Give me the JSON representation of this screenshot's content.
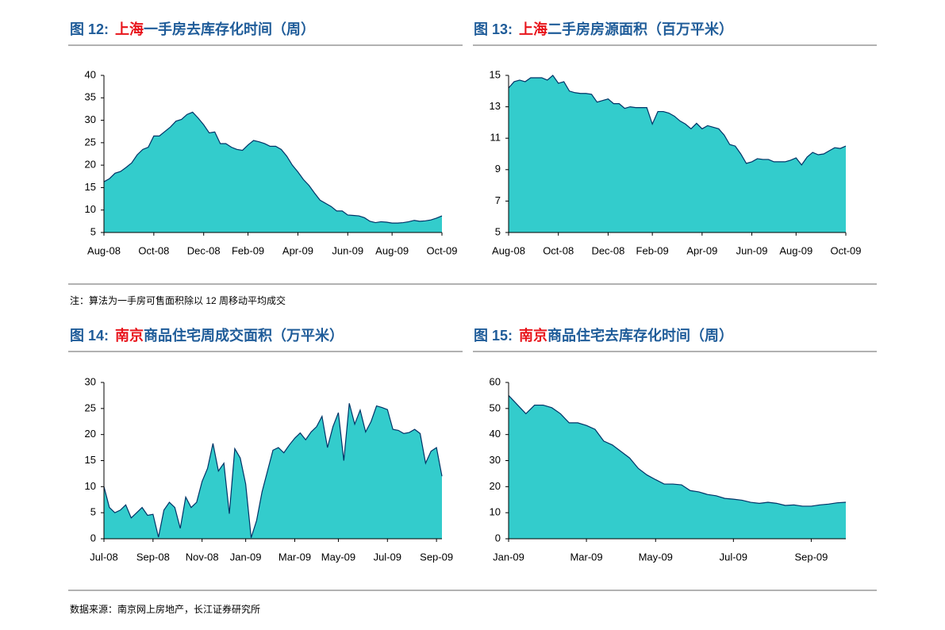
{
  "chart_data": [
    {
      "type": "area",
      "figure_label": "图 12:",
      "title_highlight": "上海",
      "title": "一手房去库存化时间（周）",
      "color": "#33cccc",
      "line_color": "#003366",
      "categories": [
        "Aug-08",
        null,
        null,
        null,
        null,
        null,
        null,
        null,
        null,
        "Oct-08",
        null,
        null,
        null,
        null,
        null,
        null,
        null,
        null,
        "Dec-08",
        null,
        null,
        null,
        null,
        null,
        null,
        null,
        "Feb-09",
        null,
        null,
        null,
        null,
        null,
        null,
        null,
        null,
        "Apr-09",
        null,
        null,
        null,
        null,
        null,
        null,
        null,
        null,
        "Jun-09",
        null,
        null,
        null,
        null,
        null,
        null,
        null,
        "Aug-09",
        null,
        null,
        null,
        null,
        null,
        null,
        null,
        null,
        "Oct-09"
      ],
      "values": [
        16.3,
        17,
        18.2,
        18.6,
        19.5,
        20.5,
        22.3,
        23.5,
        24,
        26.5,
        26.5,
        27.5,
        28.5,
        29.8,
        30.2,
        31.3,
        31.8,
        30.5,
        29,
        27.2,
        27.4,
        24.8,
        24.8,
        24,
        23.5,
        23.3,
        24.5,
        25.5,
        25.2,
        24.8,
        24.2,
        24.2,
        23.5,
        22,
        20,
        18.5,
        16.8,
        15.5,
        13.8,
        12.2,
        11.5,
        10.8,
        9.8,
        9.8,
        8.9,
        8.8,
        8.7,
        8.3,
        7.5,
        7.2,
        7.4,
        7.3,
        7.1,
        7.1,
        7.2,
        7.4,
        7.7,
        7.5,
        7.6,
        7.8,
        8.2,
        8.7
      ],
      "ylim": [
        5,
        40
      ],
      "yticks": [
        5,
        10,
        15,
        20,
        25,
        30,
        35,
        40
      ]
    },
    {
      "type": "area",
      "figure_label": "图 13:",
      "title_highlight": "上海",
      "title": "二手房房源面积（百万平米）",
      "color": "#33cccc",
      "line_color": "#003366",
      "categories": [
        "Aug-08",
        null,
        null,
        null,
        null,
        null,
        null,
        null,
        null,
        "Oct-08",
        null,
        null,
        null,
        null,
        null,
        null,
        null,
        null,
        "Dec-08",
        null,
        null,
        null,
        null,
        null,
        null,
        null,
        "Feb-09",
        null,
        null,
        null,
        null,
        null,
        null,
        null,
        null,
        "Apr-09",
        null,
        null,
        null,
        null,
        null,
        null,
        null,
        null,
        "Jun-09",
        null,
        null,
        null,
        null,
        null,
        null,
        null,
        "Aug-09",
        null,
        null,
        null,
        null,
        null,
        null,
        null,
        null,
        "Oct-09"
      ],
      "values": [
        14.2,
        14.6,
        14.7,
        14.6,
        14.85,
        14.85,
        14.85,
        14.7,
        15.0,
        14.5,
        14.6,
        14.0,
        13.9,
        13.85,
        13.85,
        13.8,
        13.3,
        13.4,
        13.5,
        13.2,
        13.2,
        12.9,
        13.0,
        12.95,
        12.95,
        12.95,
        11.9,
        12.7,
        12.7,
        12.6,
        12.4,
        12.1,
        11.9,
        11.6,
        11.95,
        11.6,
        11.8,
        11.7,
        11.6,
        11.2,
        10.6,
        10.5,
        10.0,
        9.4,
        9.5,
        9.7,
        9.65,
        9.65,
        9.5,
        9.5,
        9.5,
        9.6,
        9.75,
        9.3,
        9.8,
        10.1,
        9.95,
        10.0,
        10.2,
        10.4,
        10.35,
        10.5
      ],
      "ylim": [
        5,
        15
      ],
      "yticks": [
        5,
        7,
        9,
        11,
        13,
        15
      ]
    },
    {
      "type": "area",
      "figure_label": "图 14:",
      "title_highlight": "南京",
      "title": "商品住宅周成交面积（万平米）",
      "color": "#33cccc",
      "line_color": "#003366",
      "categories": [
        "Jul-08",
        null,
        null,
        null,
        null,
        null,
        null,
        null,
        null,
        "Sep-08",
        null,
        null,
        null,
        null,
        null,
        null,
        null,
        null,
        "Nov-08",
        null,
        null,
        null,
        null,
        null,
        null,
        null,
        "Jan-09",
        null,
        null,
        null,
        null,
        null,
        null,
        null,
        null,
        "Mar-09",
        null,
        null,
        null,
        null,
        null,
        null,
        null,
        "May-09",
        null,
        null,
        null,
        null,
        null,
        null,
        null,
        null,
        "Jul-09",
        null,
        null,
        null,
        null,
        null,
        null,
        null,
        null,
        "Sep-09",
        null
      ],
      "values": [
        10,
        6,
        5,
        5.5,
        6.5,
        4,
        5,
        6,
        4.5,
        4.7,
        0.3,
        5.5,
        7,
        6,
        2,
        8,
        6,
        7,
        11,
        13.5,
        18.3,
        13,
        14.5,
        4.8,
        17.3,
        15.5,
        10.5,
        0.2,
        3.5,
        9,
        13,
        17,
        17.5,
        16.5,
        18,
        19.3,
        20.3,
        19,
        20.5,
        21.5,
        23.5,
        17.5,
        21.5,
        24.2,
        15,
        26,
        22,
        24.7,
        20.5,
        22.5,
        25.5,
        25.2,
        24.8,
        21,
        20.8,
        20.2,
        20.4,
        21,
        20.2,
        14.5,
        16.8,
        17.5,
        12
      ],
      "ylim": [
        0,
        30
      ],
      "yticks": [
        0,
        5,
        10,
        15,
        20,
        25,
        30
      ]
    },
    {
      "type": "area",
      "figure_label": "图 15:",
      "title_highlight": "南京",
      "title": "商品住宅去库存化时间（周）",
      "color": "#33cccc",
      "line_color": "#003366",
      "categories": [
        "Jan-09",
        null,
        null,
        null,
        null,
        null,
        null,
        null,
        null,
        "Mar-09",
        null,
        null,
        null,
        null,
        null,
        null,
        null,
        "May-09",
        null,
        null,
        null,
        null,
        null,
        null,
        null,
        null,
        "Jul-09",
        null,
        null,
        null,
        null,
        null,
        null,
        null,
        null,
        "Sep-09",
        null,
        null,
        null,
        null
      ],
      "values": [
        55,
        51.5,
        48,
        51.3,
        51.3,
        50.3,
        48,
        44.5,
        44.5,
        43.5,
        42,
        37.5,
        36,
        33.5,
        31,
        27,
        24.5,
        22.7,
        21,
        21,
        20.7,
        18.5,
        18,
        17,
        16.5,
        15.5,
        15.2,
        14.8,
        14,
        13.6,
        14,
        13.6,
        12.8,
        13,
        12.5,
        12.5,
        13,
        13.3,
        13.8,
        14
      ],
      "ylim": [
        0,
        60
      ],
      "yticks": [
        0,
        10,
        20,
        30,
        40,
        50,
        60
      ]
    }
  ],
  "note": "注：算法为一手房可售面积除以 12 周移动平均成交",
  "source": "数据来源：南京网上房地产，长江证券研究所"
}
